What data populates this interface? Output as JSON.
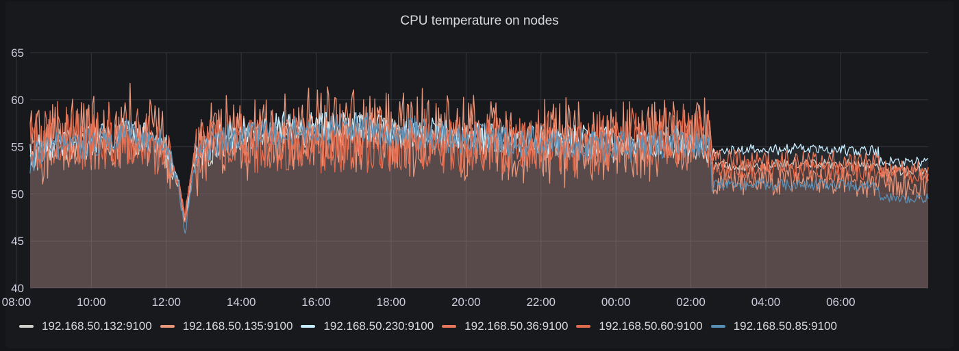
{
  "panel": {
    "title": "CPU temperature on nodes"
  },
  "chart_data": {
    "type": "line",
    "title": "CPU temperature on nodes",
    "xlabel": "",
    "ylabel": "",
    "ylim": [
      40,
      65
    ],
    "xlim": [
      "08:22",
      "08:20 (+1 day)"
    ],
    "x_unit": "clock time (hours, spanning midnight)",
    "x_ticks": [
      "10:00",
      "12:00",
      "14:00",
      "16:00",
      "18:00",
      "20:00",
      "22:00",
      "00:00",
      "02:00",
      "04:00",
      "06:00",
      "08:00"
    ],
    "y_ticks": [
      "40",
      "45",
      "50",
      "55",
      "60",
      "65"
    ],
    "grid": true,
    "area_fill": true,
    "legend_position": "bottom",
    "series": [
      {
        "name": "192.168.50.132:9100",
        "color": "#d0cfc8",
        "points": [
          [
            "08:22",
            53.5
          ],
          [
            "09:00",
            55.0
          ],
          [
            "10:00",
            55.2
          ],
          [
            "11:00",
            56.0
          ],
          [
            "11:55",
            55.0
          ],
          [
            "12:20",
            51.0
          ],
          [
            "12:30",
            47.0
          ],
          [
            "12:45",
            53.5
          ],
          [
            "13:30",
            55.5
          ],
          [
            "15:00",
            56.5
          ],
          [
            "17:00",
            57.0
          ],
          [
            "18:30",
            56.5
          ],
          [
            "20:00",
            56.0
          ],
          [
            "22:00",
            55.5
          ],
          [
            "00:00",
            55.0
          ],
          [
            "02:00",
            55.5
          ],
          [
            "02:30",
            55.0
          ],
          [
            "02:35",
            53.0
          ],
          [
            "03:30",
            53.0
          ],
          [
            "05:00",
            53.3
          ],
          [
            "07:00",
            53.0
          ],
          [
            "08:10",
            53.0
          ],
          [
            "08:20",
            52.5
          ]
        ]
      },
      {
        "name": "192.168.50.135:9100",
        "color": "#e7967b",
        "points": [
          [
            "08:22",
            55.0
          ],
          [
            "09:00",
            56.0
          ],
          [
            "10:00",
            56.5
          ],
          [
            "11:00",
            57.0
          ],
          [
            "11:55",
            56.0
          ],
          [
            "12:20",
            51.0
          ],
          [
            "12:30",
            47.5
          ],
          [
            "12:45",
            54.0
          ],
          [
            "13:30",
            56.0
          ],
          [
            "15:00",
            56.5
          ],
          [
            "17:00",
            57.0
          ],
          [
            "18:30",
            56.5
          ],
          [
            "20:00",
            56.0
          ],
          [
            "22:00",
            55.5
          ],
          [
            "00:00",
            55.5
          ],
          [
            "02:00",
            56.0
          ],
          [
            "02:30",
            55.5
          ],
          [
            "02:35",
            51.5
          ],
          [
            "03:30",
            51.5
          ],
          [
            "05:00",
            51.5
          ],
          [
            "07:00",
            51.3
          ],
          [
            "08:10",
            51.5
          ],
          [
            "08:20",
            51.0
          ]
        ]
      },
      {
        "name": "192.168.50.230:9100",
        "color": "#c6ecff",
        "points": [
          [
            "08:22",
            54.0
          ],
          [
            "09:00",
            55.5
          ],
          [
            "10:00",
            56.0
          ],
          [
            "11:00",
            56.5
          ],
          [
            "11:55",
            55.5
          ],
          [
            "12:20",
            51.0
          ],
          [
            "12:30",
            46.5
          ],
          [
            "12:45",
            54.0
          ],
          [
            "13:30",
            56.0
          ],
          [
            "15:00",
            57.0
          ],
          [
            "17:00",
            57.0
          ],
          [
            "18:30",
            56.5
          ],
          [
            "20:00",
            56.0
          ],
          [
            "22:00",
            55.8
          ],
          [
            "00:00",
            55.5
          ],
          [
            "02:00",
            55.5
          ],
          [
            "02:30",
            55.0
          ],
          [
            "02:35",
            54.5
          ],
          [
            "03:30",
            54.8
          ],
          [
            "05:00",
            54.8
          ],
          [
            "07:00",
            54.5
          ],
          [
            "08:10",
            54.5
          ],
          [
            "08:20",
            53.5
          ]
        ]
      },
      {
        "name": "192.168.50.36:9100",
        "color": "#e6775a",
        "points": [
          [
            "08:22",
            55.5
          ],
          [
            "09:00",
            56.5
          ],
          [
            "10:00",
            56.0
          ],
          [
            "11:00",
            56.5
          ],
          [
            "11:55",
            55.5
          ],
          [
            "12:20",
            51.0
          ],
          [
            "12:30",
            47.0
          ],
          [
            "12:45",
            54.5
          ],
          [
            "13:30",
            56.0
          ],
          [
            "15:00",
            55.5
          ],
          [
            "17:00",
            56.0
          ],
          [
            "18:30",
            55.5
          ],
          [
            "20:00",
            55.5
          ],
          [
            "22:00",
            55.5
          ],
          [
            "00:00",
            55.5
          ],
          [
            "02:00",
            56.0
          ],
          [
            "02:30",
            56.0
          ],
          [
            "02:35",
            53.5
          ],
          [
            "03:30",
            53.5
          ],
          [
            "05:00",
            53.5
          ],
          [
            "07:00",
            53.3
          ],
          [
            "08:10",
            53.5
          ],
          [
            "08:20",
            52.5
          ]
        ]
      },
      {
        "name": "192.168.50.60:9100",
        "color": "#e26a4d",
        "points": [
          [
            "08:22",
            55.0
          ],
          [
            "09:00",
            56.0
          ],
          [
            "10:00",
            55.5
          ],
          [
            "11:00",
            56.0
          ],
          [
            "11:55",
            55.0
          ],
          [
            "12:20",
            51.0
          ],
          [
            "12:30",
            48.0
          ],
          [
            "12:45",
            54.0
          ],
          [
            "13:30",
            55.5
          ],
          [
            "15:00",
            55.0
          ],
          [
            "17:00",
            55.5
          ],
          [
            "18:30",
            55.0
          ],
          [
            "20:00",
            55.0
          ],
          [
            "22:00",
            55.0
          ],
          [
            "00:00",
            55.0
          ],
          [
            "02:00",
            56.5
          ],
          [
            "02:30",
            56.0
          ],
          [
            "02:35",
            52.5
          ],
          [
            "03:30",
            52.5
          ],
          [
            "05:00",
            52.5
          ],
          [
            "07:00",
            52.3
          ],
          [
            "08:10",
            52.5
          ],
          [
            "08:20",
            52.0
          ]
        ]
      },
      {
        "name": "192.168.50.85:9100",
        "color": "#5a8fb5",
        "points": [
          [
            "08:22",
            53.5
          ],
          [
            "09:00",
            55.0
          ],
          [
            "10:00",
            55.5
          ],
          [
            "11:00",
            56.5
          ],
          [
            "11:55",
            55.5
          ],
          [
            "12:20",
            51.0
          ],
          [
            "12:30",
            45.5
          ],
          [
            "12:45",
            53.5
          ],
          [
            "13:30",
            56.0
          ],
          [
            "15:00",
            56.5
          ],
          [
            "17:00",
            57.0
          ],
          [
            "18:30",
            56.5
          ],
          [
            "20:00",
            56.0
          ],
          [
            "22:00",
            55.5
          ],
          [
            "00:00",
            55.0
          ],
          [
            "02:00",
            55.5
          ],
          [
            "02:30",
            55.0
          ],
          [
            "02:35",
            51.0
          ],
          [
            "03:30",
            51.0
          ],
          [
            "05:00",
            51.0
          ],
          [
            "07:00",
            50.8
          ],
          [
            "08:10",
            51.0
          ],
          [
            "08:20",
            49.5
          ]
        ]
      }
    ]
  }
}
